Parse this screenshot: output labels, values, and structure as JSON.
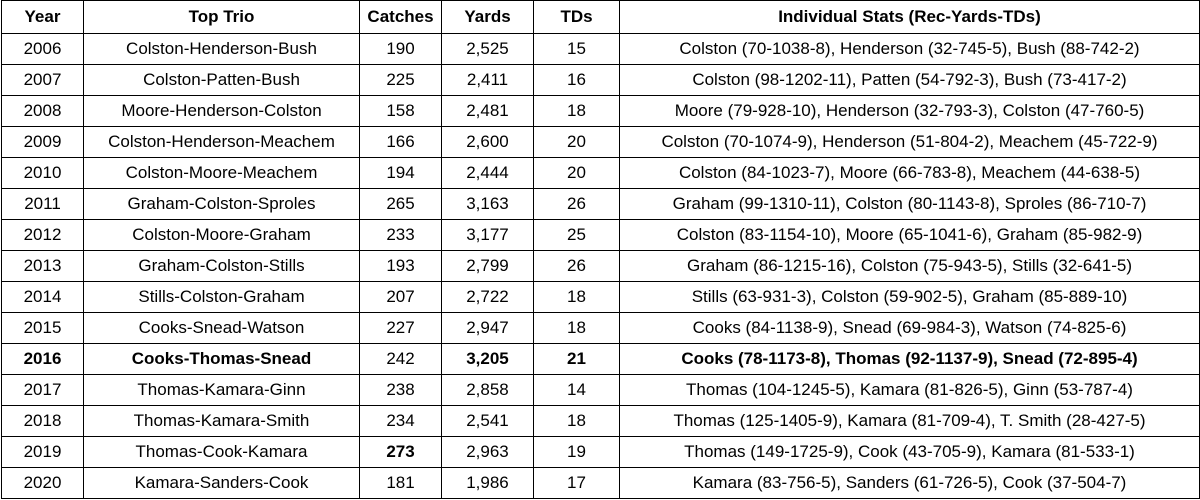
{
  "table": {
    "header": [
      "Year",
      "Top Trio",
      "Catches",
      "Yards",
      "TDs",
      "Individual Stats (Rec-Yards-TDs)"
    ],
    "rows": [
      [
        "2006",
        "Colston-Henderson-Bush",
        "190",
        "2,525",
        "15",
        "Colston (70-1038-8), Henderson (32-745-5), Bush (88-742-2)"
      ],
      [
        "2007",
        "Colston-Patten-Bush",
        "225",
        "2,411",
        "16",
        "Colston (98-1202-11), Patten (54-792-3), Bush (73-417-2)"
      ],
      [
        "2008",
        "Moore-Henderson-Colston",
        "158",
        "2,481",
        "18",
        "Moore (79-928-10), Henderson (32-793-3), Colston (47-760-5)"
      ],
      [
        "2009",
        "Colston-Henderson-Meachem",
        "166",
        "2,600",
        "20",
        "Colston (70-1074-9), Henderson (51-804-2), Meachem (45-722-9)"
      ],
      [
        "2010",
        "Colston-Moore-Meachem",
        "194",
        "2,444",
        "20",
        "Colston (84-1023-7), Moore (66-783-8), Meachem (44-638-5)"
      ],
      [
        "2011",
        "Graham-Colston-Sproles",
        "265",
        "3,163",
        "26",
        "Graham (99-1310-11), Colston (80-1143-8), Sproles (86-710-7)"
      ],
      [
        "2012",
        "Colston-Moore-Graham",
        "233",
        "3,177",
        "25",
        "Colston (83-1154-10), Moore (65-1041-6), Graham (85-982-9)"
      ],
      [
        "2013",
        "Graham-Colston-Stills",
        "193",
        "2,799",
        "26",
        "Graham (86-1215-16), Colston (75-943-5), Stills (32-641-5)"
      ],
      [
        "2014",
        "Stills-Colston-Graham",
        "207",
        "2,722",
        "18",
        "Stills (63-931-3), Colston (59-902-5), Graham (85-889-10)"
      ],
      [
        "2015",
        "Cooks-Snead-Watson",
        "227",
        "2,947",
        "18",
        "Cooks (84-1138-9), Snead (69-984-3), Watson (74-825-6)"
      ],
      [
        "2016",
        "Cooks-Thomas-Snead",
        "242",
        "3,205",
        "21",
        "Cooks (78-1173-8), Thomas (92-1137-9), Snead (72-895-4)"
      ],
      [
        "2017",
        "Thomas-Kamara-Ginn",
        "238",
        "2,858",
        "14",
        "Thomas (104-1245-5), Kamara (81-826-5), Ginn (53-787-4)"
      ],
      [
        "2018",
        "Thomas-Kamara-Smith",
        "234",
        "2,541",
        "18",
        "Thomas (125-1405-9), Kamara (81-709-4), T. Smith (28-427-5)"
      ],
      [
        "2019",
        "Thomas-Cook-Kamara",
        "273",
        "2,963",
        "19",
        "Thomas (149-1725-9), Cook (43-705-9), Kamara (81-533-1)"
      ],
      [
        "2020",
        "Kamara-Sanders-Cook",
        "181",
        "1,986",
        "17",
        "Kamara (83-756-5), Sanders (61-726-5), Cook (37-504-7)"
      ]
    ],
    "bold_cells": [
      [
        10,
        0
      ],
      [
        10,
        1
      ],
      [
        10,
        3
      ],
      [
        10,
        4
      ],
      [
        10,
        5
      ],
      [
        13,
        2
      ]
    ]
  }
}
